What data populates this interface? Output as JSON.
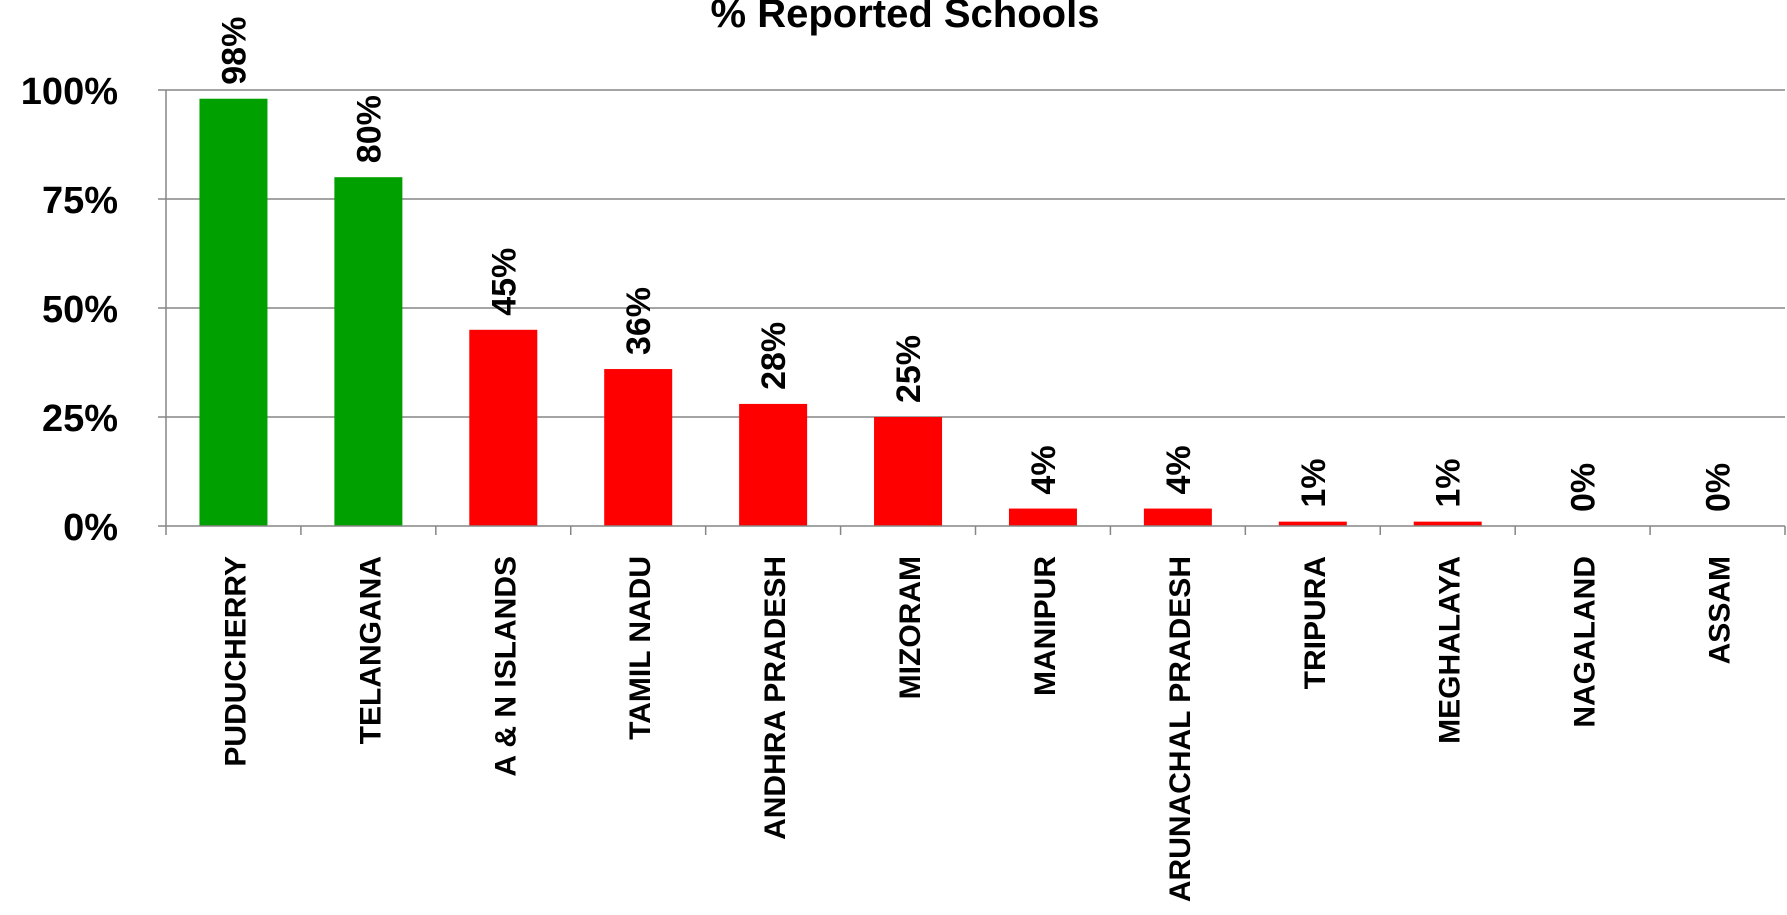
{
  "chart_data": {
    "type": "bar",
    "title": "% Reported Schools",
    "categories": [
      "PUDUCHERRY",
      "TELANGANA",
      "A & N ISLANDS",
      "TAMIL NADU",
      "ANDHRA PRADESH",
      "MIZORAM",
      "MANIPUR",
      "ARUNACHAL PRADESH",
      "TRIPURA",
      "MEGHALAYA",
      "NAGALAND",
      "ASSAM"
    ],
    "values": [
      98,
      80,
      45,
      36,
      28,
      25,
      4,
      4,
      1,
      1,
      0,
      0
    ],
    "data_labels": [
      "98%",
      "80%",
      "45%",
      "36%",
      "28%",
      "25%",
      "4%",
      "4%",
      "1%",
      "1%",
      "0%",
      "0%"
    ],
    "bar_colors": [
      "#00a000",
      "#00a000",
      "#ff0000",
      "#ff0000",
      "#ff0000",
      "#ff0000",
      "#ff0000",
      "#ff0000",
      "#ff0000",
      "#ff0000",
      "#ff0000",
      "#ff0000"
    ],
    "ylim": [
      0,
      100
    ],
    "yticks": [
      0,
      25,
      50,
      75,
      100
    ],
    "ytick_labels": [
      "0%",
      "25%",
      "50%",
      "75%",
      "100%"
    ],
    "xlabel": "",
    "ylabel": "",
    "grid": true,
    "legend": "none",
    "colors": {
      "grid": "#868686",
      "axis": "#868686",
      "text": "#000000"
    }
  }
}
